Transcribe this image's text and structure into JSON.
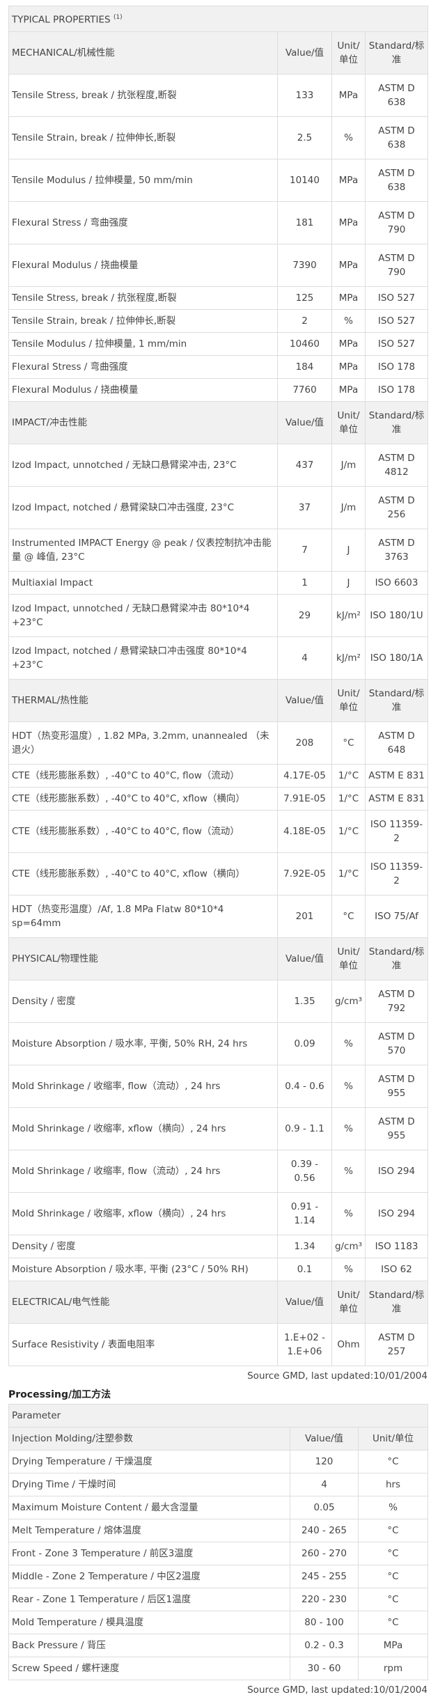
{
  "properties": {
    "title": "TYPICAL PROPERTIES",
    "title_note": "(1)",
    "sections": [
      {
        "name": "MECHANICAL/机械性能",
        "headers": [
          "Value/值",
          "Unit/单位",
          "Standard/标准"
        ],
        "rows": [
          [
            "Tensile Stress, break / 抗张程度,断裂",
            133,
            "MPa",
            "ASTM D 638"
          ],
          [
            "Tensile Strain, break / 拉伸伸长,断裂",
            2.5,
            "%",
            "ASTM D 638"
          ],
          [
            "Tensile Modulus / 拉伸模量, 50 mm/min",
            10140,
            "MPa",
            "ASTM D 638"
          ],
          [
            "Flexural Stress / 弯曲强度",
            181,
            "MPa",
            "ASTM D 790"
          ],
          [
            "Flexural Modulus / 挠曲模量",
            7390,
            "MPa",
            "ASTM D 790"
          ],
          [
            "Tensile Stress, break / 抗张程度,断裂",
            125,
            "MPa",
            "ISO 527"
          ],
          [
            "Tensile Strain, break / 拉伸伸长,断裂",
            2,
            "%",
            "ISO 527"
          ],
          [
            "Tensile Modulus / 拉伸模量, 1 mm/min",
            10460,
            "MPa",
            "ISO 527"
          ],
          [
            "Flexural Stress / 弯曲强度",
            184,
            "MPa",
            "ISO 178"
          ],
          [
            "Flexural Modulus / 挠曲模量",
            7760,
            "MPa",
            "ISO 178"
          ]
        ]
      },
      {
        "name": "IMPACT/冲击性能",
        "headers": [
          "Value/值",
          "Unit/单位",
          "Standard/标准"
        ],
        "rows": [
          [
            "Izod Impact, unnotched / 无缺口悬臂梁冲击, 23°C",
            437,
            "J/m",
            "ASTM D 4812"
          ],
          [
            "Izod Impact, notched / 悬臂梁缺口冲击强度, 23°C",
            37,
            "J/m",
            "ASTM D 256"
          ],
          [
            "Instrumented IMPACT Energy @ peak / 仪表控制抗冲击能量 @ 峰值, 23°C",
            7,
            "J",
            "ASTM D 3763"
          ],
          [
            "Multiaxial Impact",
            1,
            "J",
            "ISO 6603"
          ],
          [
            "Izod Impact, unnotched / 无缺口悬臂梁冲击 80*10*4 +23°C",
            29,
            "kJ/m²",
            "ISO 180/1U"
          ],
          [
            "Izod Impact, notched / 悬臂梁缺口冲击强度 80*10*4 +23°C",
            4,
            "kJ/m²",
            "ISO 180/1A"
          ]
        ]
      },
      {
        "name": "THERMAL/热性能",
        "headers": [
          "Value/值",
          "Unit/单位",
          "Standard/标准"
        ],
        "rows": [
          [
            "HDT（热变形温度）, 1.82 MPa, 3.2mm, unannealed （未退火）",
            208,
            "°C",
            "ASTM D 648"
          ],
          [
            "CTE（线形膨胀系数）, -40°C to 40°C, flow（流动）",
            "4.17E-05",
            "1/°C",
            "ASTM E 831"
          ],
          [
            "CTE（线形膨胀系数）, -40°C to 40°C, xflow（横向）",
            "7.91E-05",
            "1/°C",
            "ASTM E 831"
          ],
          [
            "CTE（线形膨胀系数）, -40°C to 40°C, flow（流动）",
            "4.18E-05",
            "1/°C",
            "ISO 11359-2"
          ],
          [
            "CTE（线形膨胀系数）, -40°C to 40°C, xflow（横向）",
            "7.92E-05",
            "1/°C",
            "ISO 11359-2"
          ],
          [
            "HDT（热变形温度）/Af, 1.8 MPa Flatw 80*10*4 sp=64mm",
            201,
            "°C",
            "ISO 75/Af"
          ]
        ]
      },
      {
        "name": "PHYSICAL/物理性能",
        "headers": [
          "Value/值",
          "Unit/单位",
          "Standard/标准"
        ],
        "rows": [
          [
            "Density / 密度",
            1.35,
            "g/cm³",
            "ASTM D 792"
          ],
          [
            "Moisture Absorption / 吸水率, 平衡, 50% RH, 24 hrs",
            0.09,
            "%",
            "ASTM D 570"
          ],
          [
            "Mold Shrinkage / 收缩率, flow（流动）, 24 hrs",
            "0.4 - 0.6",
            "%",
            "ASTM D 955"
          ],
          [
            "Mold Shrinkage / 收缩率, xflow（横向）, 24 hrs",
            "0.9 - 1.1",
            "%",
            "ASTM D 955"
          ],
          [
            "Mold Shrinkage / 收缩率, flow（流动）, 24 hrs",
            "0.39 - 0.56",
            "%",
            "ISO 294"
          ],
          [
            "Mold Shrinkage / 收缩率, xflow（横向）, 24 hrs",
            "0.91 - 1.14",
            "%",
            "ISO 294"
          ],
          [
            "Density / 密度",
            1.34,
            "g/cm³",
            "ISO 1183"
          ],
          [
            "Moisture Absorption / 吸水率, 平衡 (23°C / 50% RH)",
            0.1,
            "%",
            "ISO 62"
          ]
        ]
      },
      {
        "name": "ELECTRICAL/电气性能",
        "headers": [
          "Value/值",
          "Unit/单位",
          "Standard/标准"
        ],
        "rows": [
          [
            "Surface Resistivity / 表面电阻率",
            "1.E+02 - 1.E+06",
            "Ohm",
            "ASTM D 257"
          ]
        ]
      }
    ],
    "source": "Source GMD, last updated:10/01/2004"
  },
  "processing": {
    "title": "Processing/加工方法",
    "header": "Parameter",
    "section": "Injection Molding/注塑参数",
    "columns": [
      "Value/值",
      "Unit/单位"
    ],
    "rows": [
      [
        "Drying Temperature / 干燥温度",
        120,
        "°C"
      ],
      [
        "Drying Time / 干燥时间",
        4,
        "hrs"
      ],
      [
        "Maximum Moisture Content / 最大含湿量",
        0.05,
        "%"
      ],
      [
        "Melt Temperature / 熔体温度",
        "240 - 265",
        "°C"
      ],
      [
        "Front - Zone 3 Temperature / 前区3温度",
        "260 - 270",
        "°C"
      ],
      [
        "Middle - Zone 2 Temperature / 中区2温度",
        "245 - 255",
        "°C"
      ],
      [
        "Rear - Zone 1 Temperature / 后区1温度",
        "220 - 230",
        "°C"
      ],
      [
        "Mold Temperature / 模具温度",
        "80 - 100",
        "°C"
      ],
      [
        "Back Pressure / 背压",
        "0.2 - 0.3",
        "MPa"
      ],
      [
        "Screw Speed / 螺杆速度",
        "30 - 60",
        "rpm"
      ]
    ],
    "source": "Source GMD, last updated:10/01/2004"
  }
}
